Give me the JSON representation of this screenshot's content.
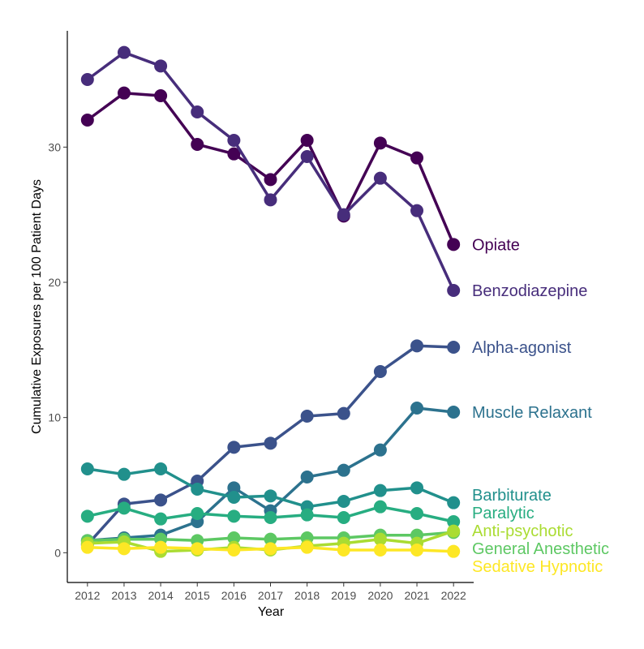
{
  "chart_data": {
    "type": "line",
    "title": "",
    "xlabel": "Year",
    "ylabel": "Cumulative Exposures per 100 Patient Days",
    "x": [
      2012,
      2013,
      2014,
      2015,
      2016,
      2017,
      2018,
      2019,
      2020,
      2021,
      2022
    ],
    "y_ticks": [
      0,
      10,
      20,
      30
    ],
    "ylim": [
      -2.2,
      38.6
    ],
    "xlim": [
      2011.45,
      2022.55
    ],
    "grid": false,
    "legend": "direct-labels-right",
    "series": [
      {
        "name": "Opiate",
        "color": "#440154",
        "values": [
          32.0,
          34.0,
          33.8,
          30.2,
          29.5,
          27.6,
          30.5,
          24.9,
          30.3,
          29.2,
          22.8
        ]
      },
      {
        "name": "Benzodiazepine",
        "color": "#472D7B",
        "values": [
          35.0,
          37.0,
          36.0,
          32.6,
          30.5,
          26.1,
          29.3,
          25.0,
          27.7,
          25.3,
          19.4
        ]
      },
      {
        "name": "Alpha-agonist",
        "color": "#3B528B",
        "values": [
          0.6,
          3.6,
          3.9,
          5.3,
          7.8,
          8.1,
          10.1,
          10.3,
          13.4,
          15.3,
          15.2
        ]
      },
      {
        "name": "Muscle Relaxant",
        "color": "#2C728E",
        "values": [
          0.9,
          1.1,
          1.3,
          2.3,
          4.8,
          3.1,
          5.6,
          6.1,
          7.6,
          10.7,
          10.4
        ]
      },
      {
        "name": "Barbiturate",
        "color": "#21908C",
        "values": [
          6.2,
          5.8,
          6.2,
          4.7,
          4.1,
          4.2,
          3.4,
          3.8,
          4.6,
          4.8,
          3.7
        ]
      },
      {
        "name": "Paralytic",
        "color": "#27AD81",
        "values": [
          2.7,
          3.3,
          2.5,
          2.9,
          2.7,
          2.6,
          2.8,
          2.6,
          3.4,
          2.9,
          2.3
        ]
      },
      {
        "name": "General Anesthetic",
        "color": "#5DC863",
        "values": [
          0.9,
          1.0,
          1.0,
          0.9,
          1.1,
          1.0,
          1.1,
          1.1,
          1.3,
          1.3,
          1.5
        ]
      },
      {
        "name": "Anti-psychotic",
        "color": "#AADC32",
        "values": [
          0.7,
          0.8,
          0.1,
          0.2,
          0.4,
          0.2,
          0.5,
          0.7,
          1.0,
          0.7,
          1.6
        ]
      },
      {
        "name": "Sedative Hypnotic",
        "color": "#FDE725",
        "values": [
          0.4,
          0.3,
          0.4,
          0.3,
          0.2,
          0.3,
          0.4,
          0.2,
          0.2,
          0.2,
          0.1
        ]
      }
    ]
  }
}
